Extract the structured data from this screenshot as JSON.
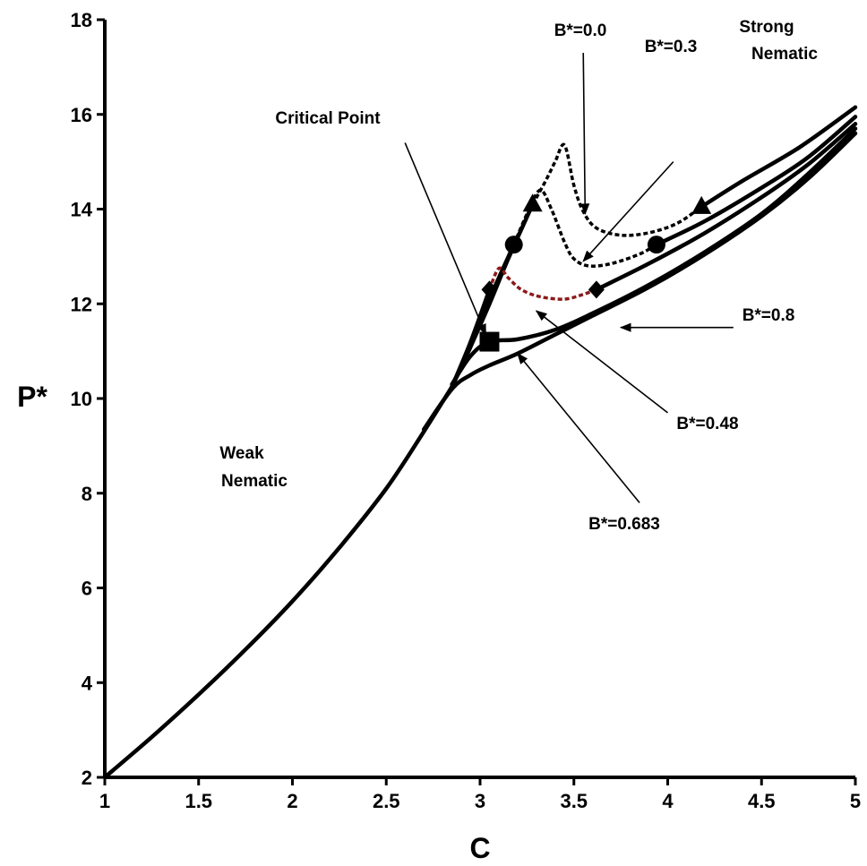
{
  "chart_data": {
    "type": "line",
    "xlabel": "C",
    "ylabel": "P*",
    "xlim": [
      1,
      5
    ],
    "ylim": [
      2,
      18
    ],
    "x_ticks": [
      "1",
      "1.5",
      "2",
      "2.5",
      "3",
      "3.5",
      "4",
      "4.5",
      "5"
    ],
    "y_ticks": [
      "2",
      "4",
      "6",
      "8",
      "10",
      "12",
      "14",
      "16",
      "18"
    ],
    "grid": false,
    "colors": {
      "axis": "#000000",
      "curve": "#000000",
      "dashed_black": "#000000",
      "dashed_red": "#8b1a1a"
    },
    "common_branch": [
      [
        1.0,
        2.0
      ],
      [
        1.25,
        2.85
      ],
      [
        1.5,
        3.75
      ],
      [
        1.75,
        4.7
      ],
      [
        2.0,
        5.72
      ],
      [
        2.25,
        6.85
      ],
      [
        2.5,
        8.1
      ],
      [
        2.7,
        9.3
      ],
      [
        2.85,
        10.25
      ]
    ],
    "series": [
      {
        "label": "B*=0.0",
        "marker": "triangle",
        "stable_low": [
          [
            2.85,
            10.25
          ],
          [
            2.95,
            11.1
          ],
          [
            3.05,
            12.0
          ],
          [
            3.15,
            12.95
          ],
          [
            3.28,
            14.1
          ]
        ],
        "metastable": [
          [
            3.28,
            14.1
          ],
          [
            3.35,
            14.6
          ],
          [
            3.4,
            15.0
          ],
          [
            3.45,
            15.35
          ],
          [
            3.5,
            14.5
          ],
          [
            3.55,
            13.95
          ],
          [
            3.62,
            13.6
          ],
          [
            3.75,
            13.45
          ],
          [
            3.9,
            13.5
          ],
          [
            4.05,
            13.7
          ],
          [
            4.18,
            14.05
          ]
        ],
        "stable_high": [
          [
            4.18,
            14.05
          ],
          [
            4.4,
            14.6
          ],
          [
            4.7,
            15.3
          ],
          [
            5.0,
            16.15
          ]
        ],
        "markers": [
          [
            3.28,
            14.1
          ],
          [
            4.18,
            14.05
          ]
        ]
      },
      {
        "label": "B*=0.3",
        "marker": "circle",
        "stable_low": [
          [
            2.85,
            10.25
          ],
          [
            2.95,
            11.1
          ],
          [
            3.05,
            12.1
          ],
          [
            3.18,
            13.25
          ]
        ],
        "metastable": [
          [
            3.18,
            13.25
          ],
          [
            3.25,
            13.9
          ],
          [
            3.32,
            14.4
          ],
          [
            3.38,
            14.0
          ],
          [
            3.45,
            13.3
          ],
          [
            3.5,
            12.95
          ],
          [
            3.58,
            12.8
          ],
          [
            3.7,
            12.85
          ],
          [
            3.85,
            13.05
          ],
          [
            3.94,
            13.25
          ]
        ],
        "stable_high": [
          [
            3.94,
            13.25
          ],
          [
            4.2,
            13.75
          ],
          [
            4.5,
            14.45
          ],
          [
            4.75,
            15.1
          ],
          [
            5.0,
            15.95
          ]
        ],
        "markers": [
          [
            3.18,
            13.25
          ],
          [
            3.94,
            13.25
          ]
        ]
      },
      {
        "label": "B*=0.48",
        "marker": "diamond",
        "stable_low": [
          [
            2.85,
            10.25
          ],
          [
            2.95,
            11.2
          ],
          [
            3.05,
            12.3
          ]
        ],
        "metastable": [
          [
            3.05,
            12.3
          ],
          [
            3.1,
            12.75
          ],
          [
            3.15,
            12.55
          ],
          [
            3.22,
            12.3
          ],
          [
            3.32,
            12.15
          ],
          [
            3.45,
            12.1
          ],
          [
            3.55,
            12.2
          ],
          [
            3.62,
            12.3
          ]
        ],
        "stable_high": [
          [
            3.62,
            12.3
          ],
          [
            3.9,
            12.85
          ],
          [
            4.2,
            13.5
          ],
          [
            4.5,
            14.25
          ],
          [
            4.75,
            14.95
          ],
          [
            5.0,
            15.8
          ]
        ],
        "markers": [
          [
            3.05,
            12.3
          ],
          [
            3.62,
            12.3
          ]
        ]
      },
      {
        "label": "B*=0.683",
        "marker": "square",
        "stable_low": [
          [
            2.85,
            10.3
          ],
          [
            2.95,
            10.9
          ],
          [
            3.05,
            11.2
          ],
          [
            3.2,
            11.25
          ],
          [
            3.4,
            11.45
          ],
          [
            3.6,
            11.8
          ],
          [
            3.9,
            12.4
          ],
          [
            4.2,
            13.1
          ],
          [
            4.5,
            13.9
          ],
          [
            4.75,
            14.75
          ],
          [
            5.0,
            15.7
          ]
        ],
        "metastable": [],
        "stable_high": [],
        "markers": [
          [
            3.05,
            11.2
          ]
        ]
      },
      {
        "label": "B*=0.8",
        "marker": "none",
        "stable_low": [
          [
            2.7,
            9.35
          ],
          [
            2.85,
            10.2
          ],
          [
            2.95,
            10.5
          ],
          [
            3.05,
            10.7
          ],
          [
            3.2,
            10.95
          ],
          [
            3.4,
            11.35
          ],
          [
            3.6,
            11.75
          ],
          [
            3.9,
            12.35
          ],
          [
            4.2,
            13.05
          ],
          [
            4.5,
            13.85
          ],
          [
            4.75,
            14.65
          ],
          [
            5.0,
            15.6
          ]
        ],
        "metastable": [],
        "stable_high": [],
        "markers": []
      }
    ],
    "annotations": [
      {
        "text": "B*=0.0",
        "arrow_from": [
          3.55,
          17.3
        ],
        "arrow_to": [
          3.56,
          13.9
        ]
      },
      {
        "text": "B*=0.3",
        "arrow_from": [
          4.03,
          15.0
        ],
        "arrow_to": [
          3.55,
          12.9
        ]
      },
      {
        "text": "B*=0.48",
        "arrow_from": [
          4.0,
          9.7
        ],
        "arrow_to": [
          3.3,
          11.85
        ]
      },
      {
        "text": "B*=0.683",
        "arrow_from": [
          3.85,
          7.8
        ],
        "arrow_to": [
          3.2,
          10.95
        ]
      },
      {
        "text": "B*=0.8",
        "arrow_from": [
          4.35,
          11.5
        ],
        "arrow_to": [
          3.75,
          11.5
        ]
      },
      {
        "text": "Critical Point",
        "arrow_from": [
          2.6,
          15.4
        ],
        "arrow_to": [
          3.03,
          11.35
        ]
      }
    ],
    "region_labels": [
      "Strong Nematic",
      "Weak Nematic"
    ]
  },
  "labels": {
    "b00": "B*=0.0",
    "b03": "B*=0.3",
    "b048": "B*=0.48",
    "b0683": "B*=0.683",
    "b08": "B*=0.8",
    "critical_point": "Critical Point",
    "strong": "Strong",
    "nematic_strong": "Nematic",
    "weak": "Weak",
    "nematic_weak": "Nematic"
  }
}
